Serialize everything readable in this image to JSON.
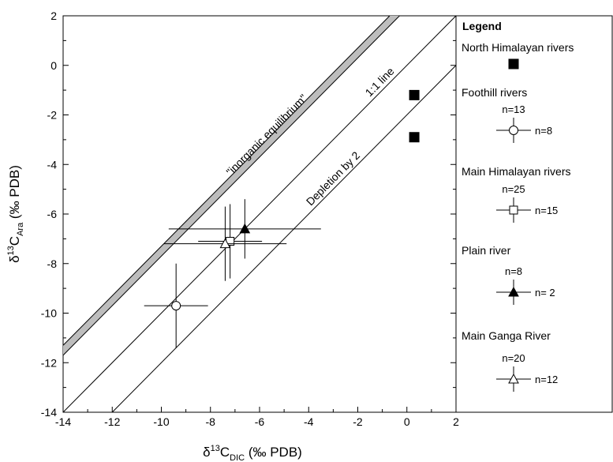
{
  "chart_data": {
    "type": "scatter",
    "xlabel": {
      "prefix": "δ",
      "sup": "13",
      "main": "C",
      "sub": "DIC",
      "suffix": " (‰ PDB)"
    },
    "ylabel": {
      "prefix": "δ",
      "sup": "13",
      "main": "C",
      "sub": "Ara",
      "suffix": " (‰ PDB)"
    },
    "xlim": [
      -14,
      2
    ],
    "ylim": [
      -14,
      2
    ],
    "xticks": [
      -14,
      -12,
      -10,
      -8,
      -6,
      -4,
      -2,
      0,
      2
    ],
    "yticks": [
      -14,
      -12,
      -10,
      -8,
      -6,
      -4,
      -2,
      0,
      2
    ],
    "legend_title": "Legend",
    "bands": [
      {
        "label": "\"inorganic equilibrium\"",
        "offsets": [
          2.3,
          2.7
        ],
        "color": "#bdbdbd"
      }
    ],
    "reference_lines": [
      {
        "label": "1:1 line",
        "offset": 0
      },
      {
        "label": "Depletion by 2",
        "offset": -2
      }
    ],
    "series": [
      {
        "name": "North Himalayan rivers",
        "marker": "square",
        "filled": true,
        "color": "#000000",
        "x": [
          0.3,
          0.3
        ],
        "values": [
          -1.2,
          -2.9
        ]
      },
      {
        "name": "Foothill rivers",
        "marker": "circle",
        "filled": false,
        "color": "#000000",
        "x": [
          -9.4
        ],
        "values": [
          -9.7
        ],
        "x_error": [
          1.3
        ],
        "y_error": [
          1.7
        ],
        "n_labels": [
          "n=13",
          "n=8"
        ]
      },
      {
        "name": "Main Himalayan rivers",
        "marker": "square",
        "filled": false,
        "color": "#000000",
        "x": [
          -7.2
        ],
        "values": [
          -7.1
        ],
        "x_error": [
          1.3
        ],
        "y_error": [
          1.5
        ],
        "n_labels": [
          "n=25",
          "n=15"
        ]
      },
      {
        "name": "Plain river",
        "marker": "triangle",
        "filled": true,
        "color": "#000000",
        "x": [
          -6.6
        ],
        "values": [
          -6.6
        ],
        "x_error": [
          3.1
        ],
        "y_error": [
          1.2
        ],
        "n_labels": [
          "n=8",
          "n= 2"
        ]
      },
      {
        "name": "Main Ganga River",
        "marker": "triangle",
        "filled": false,
        "color": "#000000",
        "x": [
          -7.4
        ],
        "values": [
          -7.2
        ],
        "x_error": [
          2.5
        ],
        "y_error": [
          1.5
        ],
        "n_labels": [
          "n=20",
          "n=12"
        ]
      }
    ]
  }
}
